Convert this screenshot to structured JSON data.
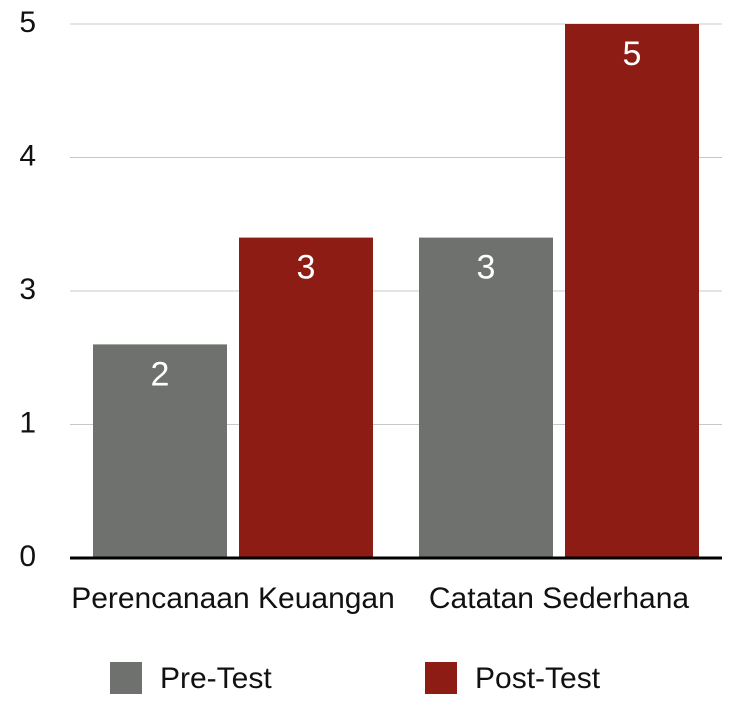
{
  "chart_data": {
    "type": "bar",
    "categories": [
      "Perencanaan Keuangan",
      "Catatan Sederhana"
    ],
    "series": [
      {
        "name": "Pre-Test",
        "color": "#6e716e",
        "values": [
          2,
          3
        ]
      },
      {
        "name": "Post-Test",
        "color": "#8c1c14",
        "values": [
          3,
          5
        ]
      }
    ],
    "ylim": [
      0,
      5
    ],
    "yticks": [
      0,
      {
        "value": 1.25,
        "label": "1"
      },
      {
        "value": 2.5,
        "label": "3"
      },
      {
        "value": 3.75,
        "label": "4"
      },
      5
    ],
    "grid": true,
    "legend": "bottom"
  }
}
